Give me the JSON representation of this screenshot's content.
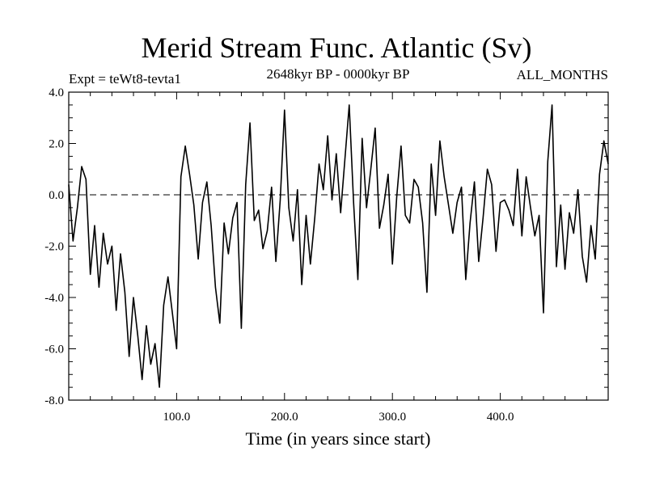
{
  "chart_data": {
    "type": "line",
    "title": "Merid Stream Func. Atlantic (Sv)",
    "subtitle_left": "Expt = teWt8-tevta1",
    "subtitle_center": "2648kyr BP - 0000kyr BP",
    "subtitle_right": "ALL_MONTHS",
    "xlabel": "Time (in years since start)",
    "ylabel": "",
    "xlim": [
      0,
      500
    ],
    "ylim": [
      -8,
      4
    ],
    "x_ticks": [
      100,
      200,
      300,
      400
    ],
    "x_tick_labels": [
      "100.0",
      "200.0",
      "300.0",
      "400.0"
    ],
    "y_ticks": [
      -8,
      -6,
      -4,
      -2,
      0,
      2,
      4
    ],
    "y_tick_labels": [
      "-8.0",
      "-6.0",
      "-4.0",
      "-2.0",
      "0.0",
      "2.0",
      "4.0"
    ],
    "reference_line": {
      "y": 0,
      "style": "dashed"
    },
    "series": [
      {
        "name": "Merid Stream Func. Atlantic",
        "x": [
          0,
          4,
          8,
          12,
          16,
          20,
          24,
          28,
          32,
          36,
          40,
          44,
          48,
          52,
          56,
          60,
          64,
          68,
          72,
          76,
          80,
          84,
          88,
          92,
          96,
          100,
          104,
          108,
          112,
          116,
          120,
          124,
          128,
          132,
          136,
          140,
          144,
          148,
          152,
          156,
          160,
          164,
          168,
          172,
          176,
          180,
          184,
          188,
          192,
          196,
          200,
          204,
          208,
          212,
          216,
          220,
          224,
          228,
          232,
          236,
          240,
          244,
          248,
          252,
          256,
          260,
          264,
          268,
          272,
          276,
          280,
          284,
          288,
          292,
          296,
          300,
          304,
          308,
          312,
          316,
          320,
          324,
          328,
          332,
          336,
          340,
          344,
          348,
          352,
          356,
          360,
          364,
          368,
          372,
          376,
          380,
          384,
          388,
          392,
          396,
          400,
          404,
          408,
          412,
          416,
          420,
          424,
          428,
          432,
          436,
          440,
          444,
          448,
          452,
          456,
          460,
          464,
          468,
          472,
          476,
          480,
          484,
          488,
          492,
          496,
          500
        ],
        "values": [
          0.4,
          -1.8,
          -0.5,
          1.1,
          0.6,
          -3.1,
          -1.2,
          -3.6,
          -1.5,
          -2.7,
          -2.0,
          -4.5,
          -2.3,
          -3.8,
          -6.3,
          -4.0,
          -5.5,
          -7.2,
          -5.1,
          -6.6,
          -5.8,
          -7.5,
          -4.3,
          -3.2,
          -4.6,
          -6.0,
          0.7,
          1.9,
          0.8,
          -0.4,
          -2.5,
          -0.3,
          0.5,
          -1.2,
          -3.6,
          -5.0,
          -1.1,
          -2.3,
          -0.9,
          -0.3,
          -5.2,
          0.4,
          2.8,
          -1.0,
          -0.6,
          -2.1,
          -1.4,
          0.3,
          -2.6,
          -0.2,
          3.3,
          -0.5,
          -1.8,
          0.2,
          -3.5,
          -0.8,
          -2.7,
          -0.9,
          1.2,
          0.2,
          2.3,
          -0.2,
          1.6,
          -0.7,
          1.4,
          3.5,
          -0.3,
          -3.3,
          2.2,
          -0.5,
          1.0,
          2.6,
          -1.3,
          -0.4,
          0.8,
          -2.7,
          -0.1,
          1.9,
          -0.8,
          -1.1,
          0.6,
          0.3,
          -1.1,
          -3.8,
          1.2,
          -0.8,
          2.1,
          0.7,
          -0.4,
          -1.5,
          -0.3,
          0.3,
          -3.3,
          -1.1,
          0.5,
          -2.6,
          -0.9,
          1.0,
          0.4,
          -2.2,
          -0.3,
          -0.2,
          -0.6,
          -1.2,
          1.0,
          -1.6,
          0.7,
          -0.5,
          -1.6,
          -0.8,
          -4.6,
          1.3,
          3.5,
          -2.8,
          -0.4,
          -2.9,
          -0.7,
          -1.5,
          0.2,
          -2.4,
          -3.4,
          -1.2,
          -2.5,
          0.8,
          2.1,
          1.2
        ]
      }
    ]
  }
}
